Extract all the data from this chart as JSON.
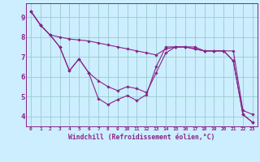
{
  "xlabel": "Windchill (Refroidissement éolien,°C)",
  "background_color": "#cceeff",
  "grid_color": "#99cccc",
  "line_color": "#882288",
  "spine_color": "#882288",
  "xlim": [
    -0.5,
    23.5
  ],
  "ylim": [
    3.5,
    9.7
  ],
  "xticks": [
    0,
    1,
    2,
    3,
    4,
    5,
    6,
    7,
    8,
    9,
    10,
    11,
    12,
    13,
    14,
    15,
    16,
    17,
    18,
    19,
    20,
    21,
    22,
    23
  ],
  "yticks": [
    4,
    5,
    6,
    7,
    8,
    9
  ],
  "line1": [
    9.3,
    8.6,
    8.1,
    7.5,
    6.3,
    6.9,
    6.2,
    4.9,
    4.6,
    4.85,
    5.05,
    4.8,
    5.1,
    6.5,
    7.5,
    7.5,
    7.5,
    7.4,
    7.3,
    7.3,
    7.3,
    6.8,
    4.1,
    3.7
  ],
  "line2": [
    9.3,
    8.6,
    8.1,
    8.0,
    7.9,
    7.85,
    7.8,
    7.7,
    7.6,
    7.5,
    7.4,
    7.3,
    7.2,
    7.1,
    7.4,
    7.5,
    7.5,
    7.5,
    7.3,
    7.3,
    7.3,
    7.3,
    4.3,
    4.1
  ],
  "line3": [
    9.3,
    8.6,
    8.1,
    7.5,
    6.3,
    6.9,
    6.2,
    5.8,
    5.5,
    5.3,
    5.5,
    5.4,
    5.2,
    6.2,
    7.2,
    7.5,
    7.5,
    7.4,
    7.3,
    7.3,
    7.3,
    6.8,
    4.1,
    3.7
  ]
}
